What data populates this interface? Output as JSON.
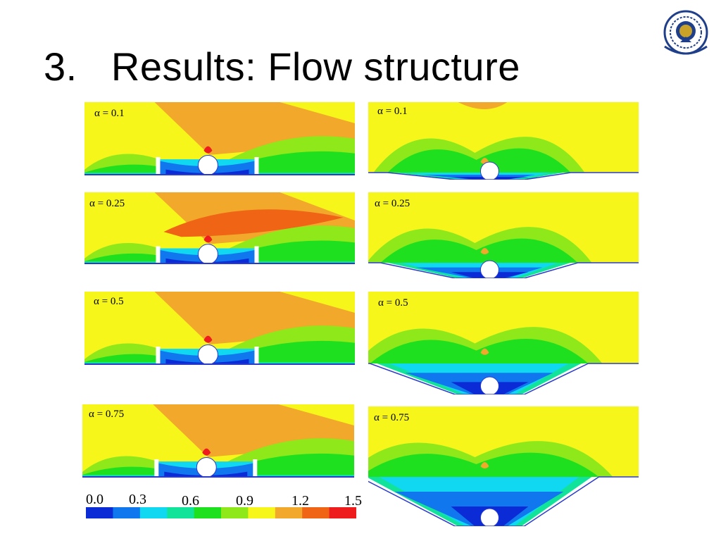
{
  "title": "3.   Results: Flow structure",
  "logo": {
    "icon": "university-emblem-icon",
    "colors": [
      "#1f3f8a",
      "#c9a227"
    ]
  },
  "panels": [
    {
      "label": "α = 0.1",
      "variant": "ribbed",
      "scheme": "A"
    },
    {
      "label": "α = 0.1",
      "variant": "trough",
      "scheme": "B"
    },
    {
      "label": "α = 0.25",
      "variant": "ribbed",
      "scheme": "C"
    },
    {
      "label": "α = 0.25",
      "variant": "trough",
      "scheme": "B"
    },
    {
      "label": "α = 0.5",
      "variant": "ribbed",
      "scheme": "D"
    },
    {
      "label": "α = 0.5",
      "variant": "trough",
      "scheme": "E"
    },
    {
      "label": "α = 0.75",
      "variant": "ribbed",
      "scheme": "F"
    },
    {
      "label": "α = 0.75",
      "variant": "trough",
      "scheme": "E"
    }
  ],
  "colorbar": {
    "ticks": [
      "0.0",
      "0.3",
      "0.6",
      "0.9",
      "1.2",
      "1.5"
    ],
    "colors": [
      "#0a2bd6",
      "#1177ee",
      "#10d8f0",
      "#12e39a",
      "#1ee01e",
      "#8ee81a",
      "#f6f61a",
      "#f2a82a",
      "#f06416",
      "#ee1c1c"
    ]
  }
}
